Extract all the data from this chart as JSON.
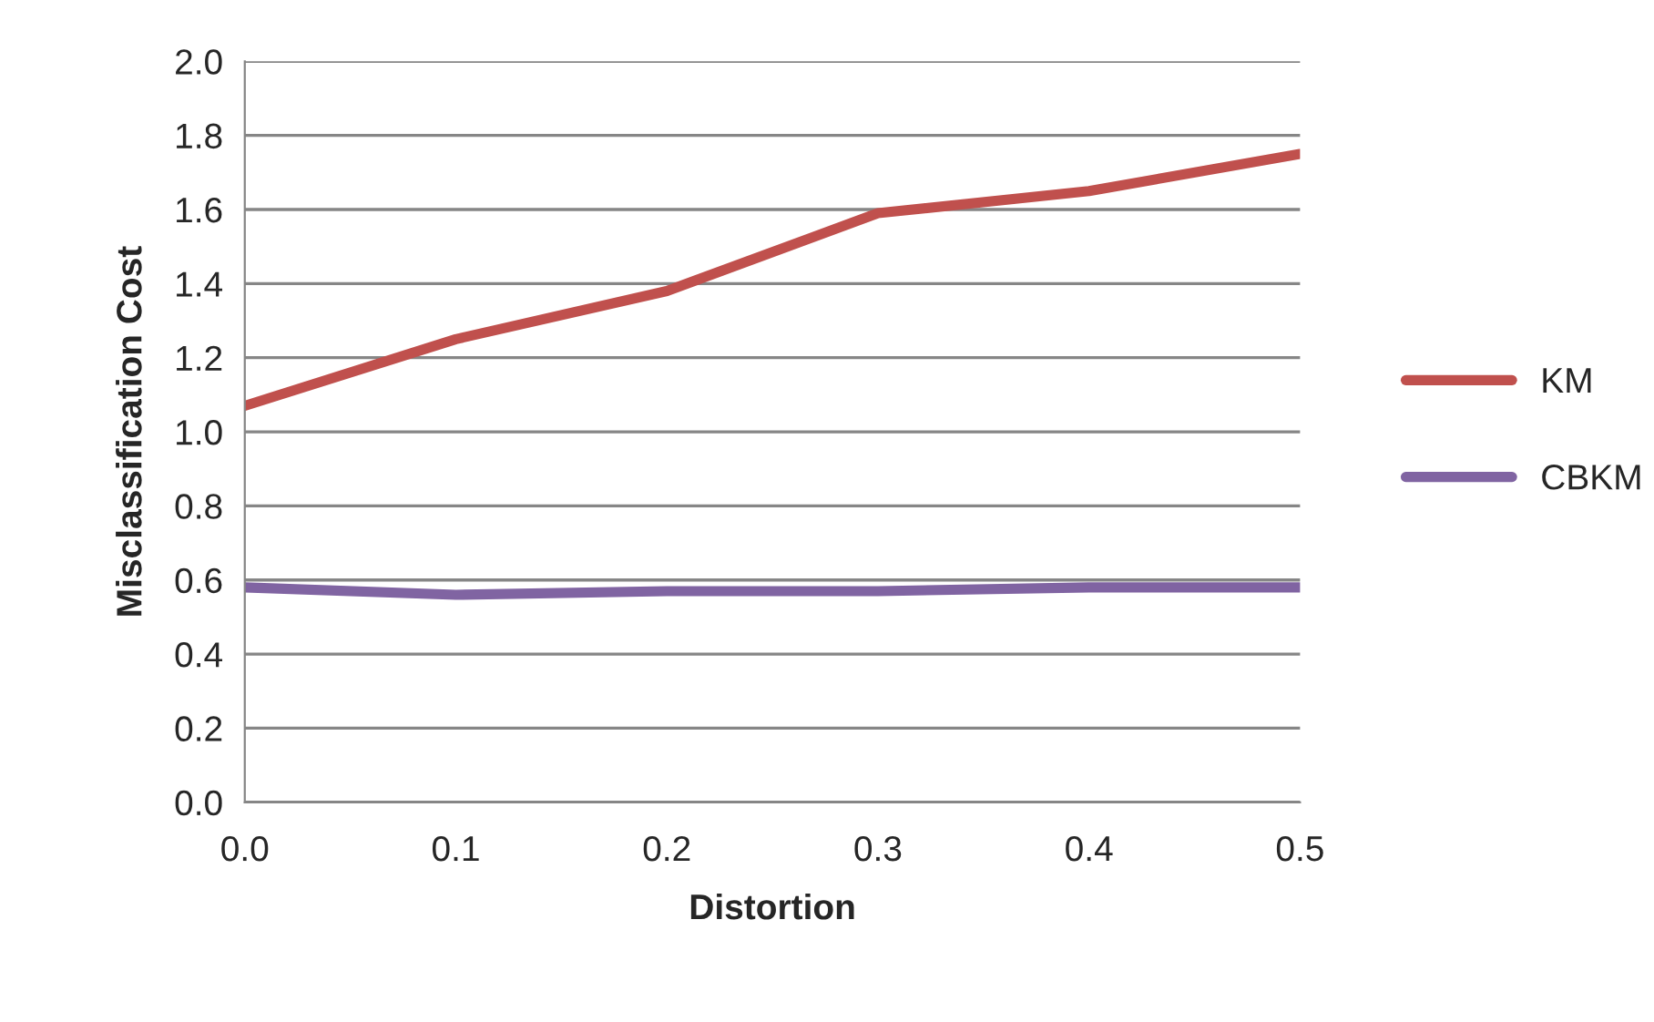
{
  "chart_data": {
    "type": "line",
    "xlabel": "Distortion",
    "ylabel": "Misclassification Cost",
    "x": [
      0.0,
      0.1,
      0.2,
      0.3,
      0.4,
      0.5
    ],
    "series": [
      {
        "name": "KM",
        "color": "#c0504d",
        "values": [
          1.07,
          1.25,
          1.38,
          1.59,
          1.65,
          1.75
        ]
      },
      {
        "name": "CBKM",
        "color": "#8064a2",
        "values": [
          0.58,
          0.56,
          0.57,
          0.57,
          0.58,
          0.58
        ]
      }
    ],
    "xlim": [
      0.0,
      0.5
    ],
    "xticks": [
      {
        "value": 0,
        "label": "0.0"
      },
      0.1,
      0.2,
      0.3,
      0.4,
      0.5
    ],
    "ylim": [
      0.0,
      2.0
    ],
    "yticks": [
      {
        "value": 0,
        "label": "0.0"
      },
      0.2,
      0.4,
      0.6,
      0.8,
      {
        "value": 1,
        "label": "1.0"
      },
      1.2,
      1.4,
      1.6,
      1.8,
      {
        "value": 2,
        "label": "2.0"
      }
    ],
    "grid": "y",
    "legend": "right",
    "marker": "none",
    "line_style": "solid"
  }
}
